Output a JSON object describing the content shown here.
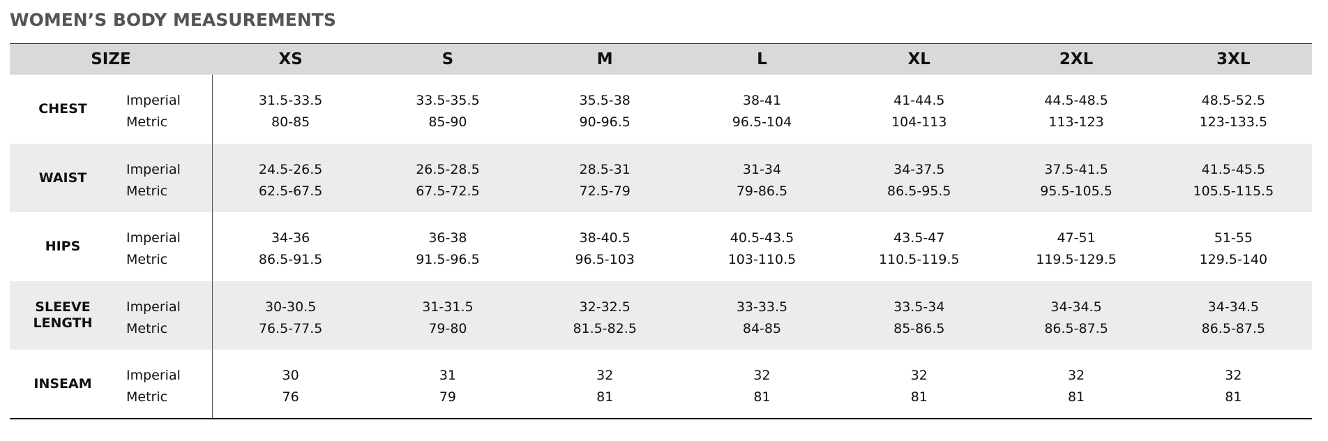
{
  "title": "WOMEN’S BODY MEASUREMENTS",
  "table": {
    "header": [
      "SIZE",
      "XS",
      "S",
      "M",
      "L",
      "XL",
      "2XL",
      "3XL"
    ],
    "rows": [
      {
        "name": "CHEST",
        "units": [
          "Imperial",
          "Metric"
        ],
        "values": [
          [
            "31.5-33.5",
            "80-85"
          ],
          [
            "33.5-35.5",
            "85-90"
          ],
          [
            "35.5-38",
            "90-96.5"
          ],
          [
            "38-41",
            "96.5-104"
          ],
          [
            "41-44.5",
            "104-113"
          ],
          [
            "44.5-48.5",
            "113-123"
          ],
          [
            "48.5-52.5",
            "123-133.5"
          ]
        ]
      },
      {
        "name": "WAIST",
        "units": [
          "Imperial",
          "Metric"
        ],
        "values": [
          [
            "24.5-26.5",
            "62.5-67.5"
          ],
          [
            "26.5-28.5",
            "67.5-72.5"
          ],
          [
            "28.5-31",
            "72.5-79"
          ],
          [
            "31-34",
            "79-86.5"
          ],
          [
            "34-37.5",
            "86.5-95.5"
          ],
          [
            "37.5-41.5",
            "95.5-105.5"
          ],
          [
            "41.5-45.5",
            "105.5-115.5"
          ]
        ]
      },
      {
        "name": "HIPS",
        "units": [
          "Imperial",
          "Metric"
        ],
        "values": [
          [
            "34-36",
            "86.5-91.5"
          ],
          [
            "36-38",
            "91.5-96.5"
          ],
          [
            "38-40.5",
            "96.5-103"
          ],
          [
            "40.5-43.5",
            "103-110.5"
          ],
          [
            "43.5-47",
            "110.5-119.5"
          ],
          [
            "47-51",
            "119.5-129.5"
          ],
          [
            "51-55",
            "129.5-140"
          ]
        ]
      },
      {
        "name": "SLEEVE LENGTH",
        "units": [
          "Imperial",
          "Metric"
        ],
        "values": [
          [
            "30-30.5",
            "76.5-77.5"
          ],
          [
            "31-31.5",
            "79-80"
          ],
          [
            "32-32.5",
            "81.5-82.5"
          ],
          [
            "33-33.5",
            "84-85"
          ],
          [
            "33.5-34",
            "85-86.5"
          ],
          [
            "34-34.5",
            "86.5-87.5"
          ],
          [
            "34-34.5",
            "86.5-87.5"
          ]
        ]
      },
      {
        "name": "INSEAM",
        "units": [
          "Imperial",
          "Metric"
        ],
        "values": [
          [
            "30",
            "76"
          ],
          [
            "31",
            "79"
          ],
          [
            "32",
            "81"
          ],
          [
            "32",
            "81"
          ],
          [
            "32",
            "81"
          ],
          [
            "32",
            "81"
          ],
          [
            "32",
            "81"
          ]
        ]
      }
    ]
  }
}
